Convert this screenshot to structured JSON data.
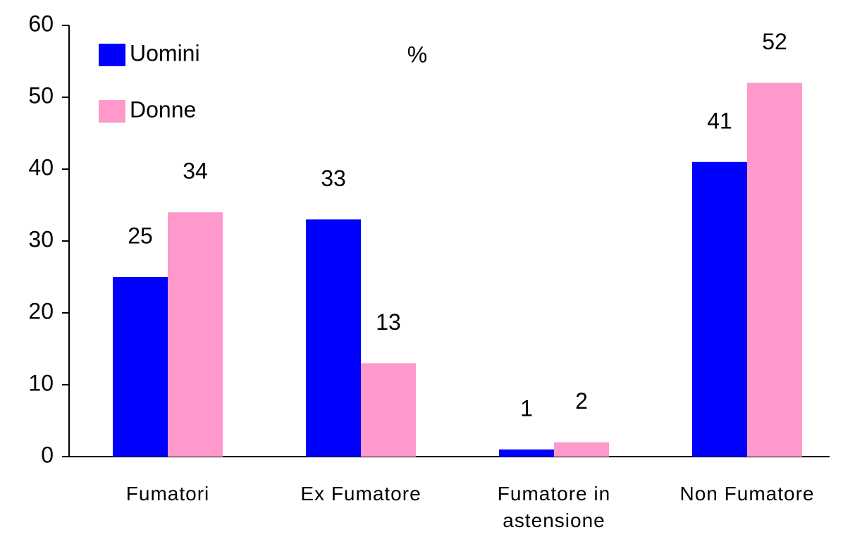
{
  "chart_data": {
    "type": "bar",
    "annotation": "%",
    "categories": [
      "Fumatori",
      "Ex Fumatore",
      "Fumatore in astensione",
      "Non Fumatore"
    ],
    "series": [
      {
        "name": "Uomini",
        "color": "#0000ff",
        "values": [
          25,
          33,
          1,
          41
        ]
      },
      {
        "name": "Donne",
        "color": "#ff99cc",
        "values": [
          34,
          13,
          2,
          52
        ]
      }
    ],
    "ylim": [
      0,
      60
    ],
    "yticks": [
      0,
      10,
      20,
      30,
      40,
      50,
      60
    ],
    "grid": false,
    "legend": "top-left"
  }
}
